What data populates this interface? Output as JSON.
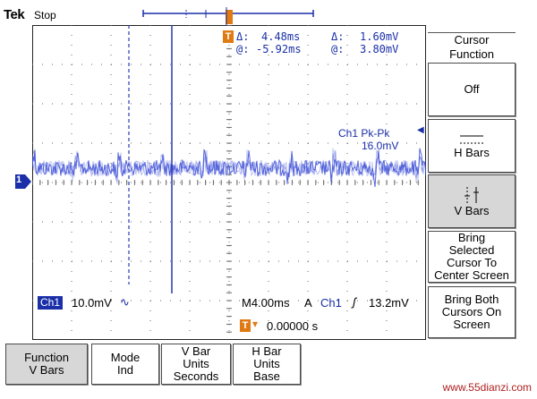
{
  "header": {
    "brand": "Tek",
    "state": "Stop"
  },
  "readouts": {
    "delta_time_label": "Δ:",
    "delta_time": "4.48ms",
    "delta_volt_label": "Δ:",
    "delta_volt": "1.60mV",
    "at_time_label": "@:",
    "at_time": "-5.92ms",
    "at_volt_label": "@:",
    "at_volt": "3.80mV",
    "trigger_marker": "T"
  },
  "measurement": {
    "label": "Ch1 Pk-Pk",
    "value": "16.0mV"
  },
  "channel_marker": "1",
  "bottom_status": {
    "channel": "Ch1",
    "scale": "10.0mV",
    "coupling_symbol": "∿",
    "timebase": "M4.00ms",
    "acq": "A",
    "trig_channel": "Ch1",
    "trig_slope": "ʃ",
    "trig_level": "13.2mV",
    "trig_pos_marker": "T",
    "trig_pos_arrow": "▾",
    "trig_offset": "0.00000 s"
  },
  "side_menu": {
    "title_line1": "Cursor",
    "title_line2": "Function",
    "off": "Off",
    "h_bars": "H Bars",
    "v_bars": "V Bars",
    "bring_selected": [
      "Bring",
      "Selected",
      "Cursor To",
      "Center Screen"
    ],
    "bring_both": [
      "Bring Both",
      "Cursors On",
      "Screen"
    ]
  },
  "bottom_menu": [
    {
      "line1": "Function",
      "line2": "V Bars",
      "line3": ""
    },
    {
      "line1": "Mode",
      "line2": "Ind",
      "line3": ""
    },
    {
      "line1": "V Bar",
      "line2": "Units",
      "line3": "Seconds"
    },
    {
      "line1": "H Bar",
      "line2": "Units",
      "line3": "Base"
    }
  ],
  "watermark": "www.55dianzi.com",
  "colors": {
    "trace": "#3d4fd6",
    "cursor": "#2a3bb0",
    "orange": "#e07a12",
    "grid": "#6a6a6a"
  }
}
